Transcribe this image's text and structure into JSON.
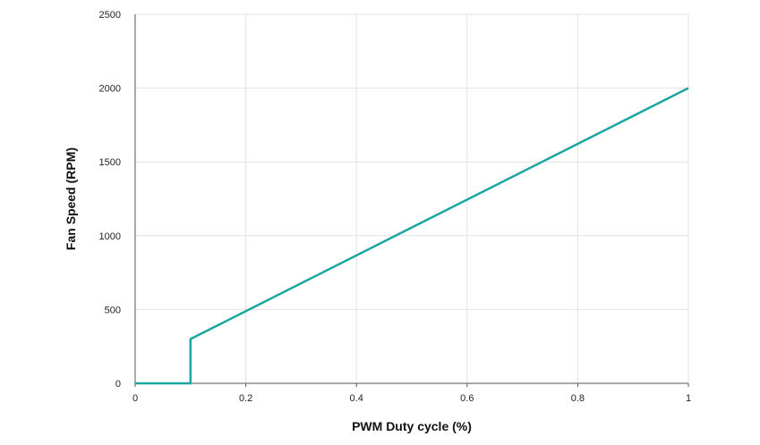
{
  "chart_data": {
    "type": "line",
    "title": "",
    "xlabel": "PWM Duty cycle (%)",
    "ylabel": "Fan Speed (RPM)",
    "xlim": [
      0,
      1
    ],
    "ylim": [
      0,
      2500
    ],
    "x_ticks": [
      0,
      0.2,
      0.4,
      0.6,
      0.8,
      1
    ],
    "x_tick_labels": [
      "0",
      "0.2",
      "0.4",
      "0.6",
      "0.8",
      "1"
    ],
    "y_ticks": [
      0,
      500,
      1000,
      1500,
      2000,
      2500
    ],
    "y_tick_labels": [
      "0",
      "500",
      "1000",
      "1500",
      "2000",
      "2500"
    ],
    "grid": true,
    "legend": "none",
    "series": [
      {
        "color": "#1aa6a0",
        "x": [
          0,
          0.1,
          0.1,
          1
        ],
        "y": [
          0,
          0,
          300,
          2000
        ]
      }
    ]
  }
}
